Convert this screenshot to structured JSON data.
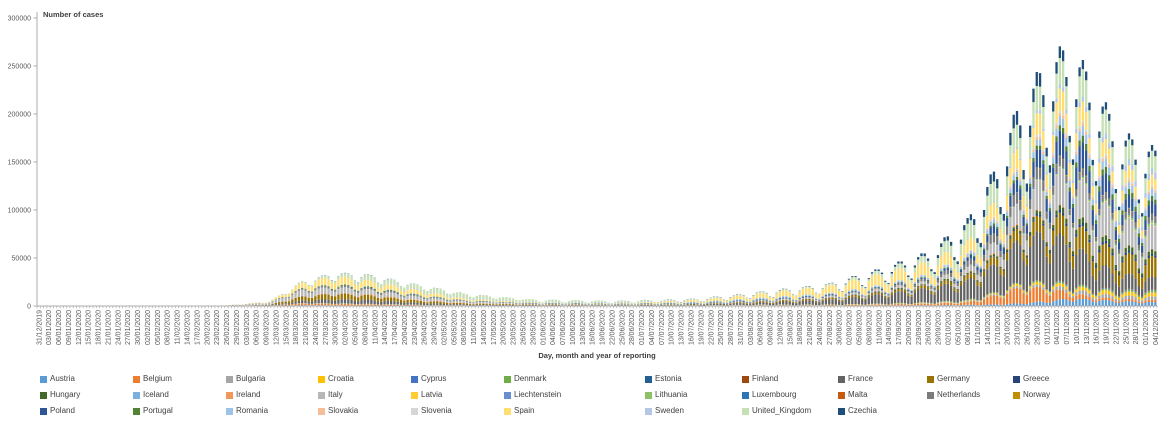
{
  "chart_data": {
    "type": "bar",
    "subtype": "stacked-daily",
    "y_axis": {
      "label": "Number of cases",
      "min": 0,
      "max": 300000,
      "tick_interval": 50000,
      "ticks": [
        0,
        50000,
        100000,
        150000,
        200000,
        250000,
        300000
      ]
    },
    "x_axis": {
      "label": "Day, month and year of reporting",
      "first_bar_date": "31/12/2019",
      "last_bar_date": "04/12/2020",
      "bar_period_days": 1,
      "n_bars": 340,
      "label_every_n_days": 3,
      "tick_labels": [
        "31/12/2019",
        "03/01/2020",
        "06/01/2020",
        "09/01/2020",
        "12/01/2020",
        "15/01/2020",
        "18/01/2020",
        "21/01/2020",
        "24/01/2020",
        "27/01/2020",
        "30/01/2020",
        "02/02/2020",
        "05/02/2020",
        "08/02/2020",
        "11/02/2020",
        "14/02/2020",
        "17/02/2020",
        "20/02/2020",
        "23/02/2020",
        "26/02/2020",
        "29/02/2020",
        "03/03/2020",
        "06/03/2020",
        "09/03/2020",
        "12/03/2020",
        "15/03/2020",
        "18/03/2020",
        "21/03/2020",
        "24/03/2020",
        "27/03/2020",
        "30/03/2020",
        "02/04/2020",
        "05/04/2020",
        "08/04/2020",
        "11/04/2020",
        "14/04/2020",
        "17/04/2020",
        "20/04/2020",
        "23/04/2020",
        "26/04/2020",
        "29/04/2020",
        "02/05/2020",
        "05/05/2020",
        "08/05/2020",
        "11/05/2020",
        "14/05/2020",
        "17/05/2020",
        "20/05/2020",
        "23/05/2020",
        "26/05/2020",
        "29/05/2020",
        "01/06/2020",
        "04/06/2020",
        "07/06/2020",
        "10/06/2020",
        "13/06/2020",
        "16/06/2020",
        "19/06/2020",
        "22/06/2020",
        "25/06/2020",
        "28/06/2020",
        "01/07/2020",
        "04/07/2020",
        "07/07/2020",
        "10/07/2020",
        "13/07/2020",
        "16/07/2020",
        "19/07/2020",
        "22/07/2020",
        "25/07/2020",
        "28/07/2020",
        "31/07/2020",
        "03/08/2020",
        "06/08/2020",
        "09/08/2020",
        "12/08/2020",
        "15/08/2020",
        "18/08/2020",
        "21/08/2020",
        "24/08/2020",
        "27/08/2020",
        "30/08/2020",
        "02/09/2020",
        "05/09/2020",
        "08/09/2020",
        "11/09/2020",
        "14/09/2020",
        "17/09/2020",
        "20/09/2020",
        "23/09/2020",
        "26/09/2020",
        "29/09/2020",
        "02/10/2020",
        "05/10/2020",
        "08/10/2020",
        "11/10/2020",
        "14/10/2020",
        "17/10/2020",
        "20/10/2020",
        "23/10/2020",
        "26/10/2020",
        "29/10/2020",
        "01/11/2020",
        "04/11/2020",
        "07/11/2020",
        "10/11/2020",
        "13/11/2020",
        "16/11/2020",
        "19/11/2020",
        "22/11/2020",
        "25/11/2020",
        "28/11/2020",
        "01/12/2020",
        "04/12/2020"
      ]
    },
    "legend": {
      "position": "bottom",
      "columns": 11,
      "rows": 3
    },
    "estimation": {
      "note": "Daily stacked values estimated from pixel heights; values given at keyframe dates, linearly interpolated per day, with a weekday reporting modulation producing the sawtooth envelope.",
      "keyframe_day_index": [
        0,
        55,
        70,
        80,
        90,
        100,
        115,
        130,
        150,
        175,
        200,
        220,
        240,
        255,
        270,
        282,
        290,
        298,
        306,
        313,
        320,
        328,
        339
      ],
      "keyframe_dates": [
        "31/12/2019",
        "24/02/2020",
        "10/03/2020",
        "20/03/2020",
        "30/03/2020",
        "09/04/2020",
        "24/04/2020",
        "09/05/2020",
        "29/05/2020",
        "23/06/2020",
        "18/07/2020",
        "07/08/2020",
        "27/08/2020",
        "11/09/2020",
        "26/09/2020",
        "08/10/2020",
        "16/10/2020",
        "24/10/2020",
        "01/11/2020",
        "08/11/2020",
        "15/11/2020",
        "23/11/2020",
        "04/12/2020"
      ],
      "weekly_modulation_mon_to_sun": [
        0.66,
        0.95,
        1.12,
        1.18,
        1.15,
        1.02,
        0.75
      ],
      "first_bar_weekday": "Tuesday",
      "modulation_damping_before_day": 150,
      "modulation_damping_factor": 0.55
    },
    "series": [
      {
        "name": "Austria",
        "color": "#5B9BD5",
        "values": [
          0,
          0,
          90,
          900,
          700,
          300,
          80,
          60,
          40,
          35,
          90,
          250,
          350,
          600,
          750,
          1100,
          1500,
          2500,
          4500,
          7000,
          6000,
          4500,
          3500
        ]
      },
      {
        "name": "Belgium",
        "color": "#ED7D31",
        "values": [
          0,
          0,
          180,
          1500,
          1400,
          1300,
          800,
          400,
          250,
          90,
          200,
          500,
          500,
          800,
          1500,
          2500,
          8000,
          15000,
          12000,
          6000,
          2500,
          2000,
          2000
        ]
      },
      {
        "name": "Bulgaria",
        "color": "#A5A5A5",
        "values": [
          0,
          0,
          10,
          50,
          60,
          70,
          60,
          40,
          20,
          60,
          240,
          150,
          120,
          150,
          300,
          700,
          1200,
          1800,
          2500,
          3500,
          3500,
          3000,
          3000
        ]
      },
      {
        "name": "Croatia",
        "color": "#FFC000",
        "values": [
          0,
          0,
          15,
          80,
          60,
          50,
          30,
          15,
          5,
          25,
          90,
          150,
          200,
          200,
          300,
          500,
          900,
          1800,
          2500,
          3000,
          3200,
          3500,
          3500
        ]
      },
      {
        "name": "Cyprus",
        "color": "#4472C4",
        "values": [
          0,
          0,
          5,
          30,
          30,
          25,
          15,
          10,
          5,
          5,
          15,
          20,
          20,
          30,
          80,
          120,
          150,
          180,
          200,
          250,
          250,
          250,
          300
        ]
      },
      {
        "name": "Denmark",
        "color": "#70AD47",
        "values": [
          0,
          0,
          100,
          150,
          250,
          250,
          180,
          130,
          60,
          40,
          80,
          120,
          100,
          300,
          450,
          500,
          600,
          800,
          1100,
          1200,
          1100,
          1300,
          1600
        ]
      },
      {
        "name": "Estonia",
        "color": "#255E91",
        "values": [
          0,
          0,
          15,
          60,
          60,
          40,
          25,
          10,
          5,
          5,
          10,
          20,
          20,
          30,
          60,
          80,
          120,
          160,
          200,
          250,
          300,
          350,
          500
        ]
      },
      {
        "name": "Finland",
        "color": "#9E480E",
        "values": [
          0,
          0,
          30,
          120,
          130,
          100,
          80,
          50,
          30,
          15,
          15,
          25,
          30,
          80,
          120,
          150,
          200,
          220,
          250,
          300,
          300,
          350,
          400
        ]
      },
      {
        "name": "France",
        "color": "#636363",
        "values": [
          0,
          2,
          500,
          2500,
          4000,
          4000,
          2000,
          800,
          500,
          400,
          700,
          2000,
          4500,
          8500,
          13000,
          18000,
          25000,
          40000,
          45000,
          40000,
          25000,
          15000,
          11000
        ]
      },
      {
        "name": "Germany",
        "color": "#997300",
        "values": [
          0,
          2,
          350,
          4000,
          5500,
          4500,
          2200,
          1000,
          500,
          400,
          400,
          1000,
          1400,
          1700,
          2300,
          4000,
          7000,
          11000,
          15000,
          20000,
          20000,
          18000,
          18000
        ]
      },
      {
        "name": "Greece",
        "color": "#264478",
        "values": [
          0,
          0,
          20,
          90,
          90,
          60,
          30,
          15,
          10,
          15,
          30,
          150,
          250,
          300,
          350,
          400,
          500,
          900,
          2000,
          2800,
          2800,
          2300,
          1800
        ]
      },
      {
        "name": "Hungary",
        "color": "#43682B",
        "values": [
          0,
          0,
          10,
          50,
          80,
          90,
          70,
          50,
          30,
          15,
          15,
          30,
          60,
          500,
          900,
          1200,
          1800,
          2500,
          3500,
          5000,
          5000,
          4500,
          4000
        ]
      },
      {
        "name": "Iceland",
        "color": "#7CAFDD",
        "values": [
          0,
          0,
          25,
          80,
          60,
          20,
          5,
          2,
          1,
          2,
          5,
          15,
          60,
          60,
          30,
          40,
          50,
          40,
          30,
          20,
          15,
          15,
          15
        ]
      },
      {
        "name": "Ireland",
        "color": "#F1975A",
        "values": [
          0,
          0,
          30,
          300,
          450,
          700,
          500,
          300,
          100,
          20,
          25,
          60,
          120,
          250,
          400,
          500,
          1000,
          1200,
          700,
          450,
          400,
          300,
          270
        ]
      },
      {
        "name": "Italy",
        "color": "#B7B7B7",
        "values": [
          0,
          150,
          1800,
          5500,
          5500,
          4500,
          3000,
          1400,
          600,
          250,
          230,
          450,
          1100,
          1600,
          1900,
          4500,
          9000,
          19000,
          30000,
          35000,
          33000,
          25000,
          22000
        ]
      },
      {
        "name": "Latvia",
        "color": "#FFCD33",
        "values": [
          0,
          0,
          5,
          25,
          25,
          25,
          15,
          10,
          5,
          3,
          5,
          5,
          10,
          20,
          50,
          90,
          130,
          180,
          250,
          300,
          400,
          450,
          500
        ]
      },
      {
        "name": "Liechtenstein",
        "color": "#698ED0",
        "values": [
          0,
          0,
          2,
          8,
          5,
          2,
          1,
          0,
          0,
          0,
          0,
          1,
          1,
          2,
          5,
          8,
          10,
          15,
          20,
          25,
          25,
          20,
          20
        ]
      },
      {
        "name": "Lithuania",
        "color": "#8CC168",
        "values": [
          0,
          0,
          5,
          40,
          50,
          40,
          25,
          15,
          8,
          5,
          10,
          15,
          25,
          40,
          100,
          150,
          250,
          400,
          700,
          1200,
          1600,
          2000,
          2500
        ]
      },
      {
        "name": "Luxembourg",
        "color": "#2E75B6",
        "values": [
          0,
          0,
          25,
          150,
          120,
          80,
          30,
          10,
          5,
          10,
          100,
          100,
          50,
          100,
          150,
          200,
          350,
          550,
          700,
          700,
          600,
          600,
          650
        ]
      },
      {
        "name": "Malta",
        "color": "#C55A11",
        "values": [
          0,
          0,
          5,
          20,
          15,
          10,
          5,
          3,
          1,
          2,
          5,
          30,
          50,
          50,
          50,
          60,
          90,
          120,
          150,
          180,
          180,
          150,
          130
        ]
      },
      {
        "name": "Netherlands",
        "color": "#7B7B7B",
        "values": [
          0,
          0,
          200,
          900,
          1100,
          1200,
          800,
          300,
          150,
          80,
          120,
          400,
          500,
          900,
          2200,
          4500,
          7500,
          9500,
          9000,
          6500,
          5000,
          4800,
          4800
        ]
      },
      {
        "name": "Norway",
        "color": "#BF8F00",
        "values": [
          0,
          0,
          120,
          200,
          250,
          150,
          70,
          30,
          15,
          10,
          15,
          40,
          70,
          100,
          150,
          200,
          280,
          350,
          450,
          550,
          550,
          450,
          400
        ]
      },
      {
        "name": "Poland",
        "color": "#2F5597",
        "values": [
          0,
          0,
          20,
          120,
          250,
          350,
          350,
          350,
          350,
          300,
          350,
          600,
          700,
          550,
          1000,
          3000,
          7500,
          12000,
          18000,
          25000,
          22000,
          12000,
          11000
        ]
      },
      {
        "name": "Portugal",
        "color": "#548235",
        "values": [
          0,
          0,
          30,
          500,
          800,
          900,
          700,
          300,
          250,
          300,
          300,
          230,
          200,
          400,
          700,
          1000,
          1800,
          2800,
          4000,
          5500,
          6000,
          5000,
          4500
        ]
      },
      {
        "name": "Romania",
        "color": "#9DC3E6",
        "values": [
          0,
          0,
          15,
          150,
          250,
          300,
          300,
          200,
          150,
          200,
          700,
          1200,
          1100,
          1300,
          1800,
          2500,
          3500,
          4500,
          6000,
          9000,
          8000,
          6500,
          6000
        ]
      },
      {
        "name": "Slovakia",
        "color": "#F6BE98",
        "values": [
          0,
          0,
          10,
          40,
          50,
          60,
          30,
          20,
          10,
          10,
          20,
          40,
          60,
          100,
          250,
          700,
          1500,
          2000,
          2500,
          3000,
          2500,
          1800,
          1800
        ]
      },
      {
        "name": "Slovenia",
        "color": "#D6D6D6",
        "values": [
          0,
          0,
          15,
          60,
          50,
          40,
          20,
          10,
          3,
          5,
          15,
          25,
          30,
          80,
          200,
          350,
          800,
          1500,
          2500,
          2000,
          1700,
          1600,
          1500
        ]
      },
      {
        "name": "Spain",
        "color": "#FFDD71",
        "values": [
          0,
          0,
          600,
          5000,
          7500,
          6000,
          4000,
          1500,
          500,
          400,
          1800,
          4000,
          7000,
          10000,
          11000,
          11000,
          13000,
          18000,
          19000,
          20000,
          15000,
          12000,
          9000
        ]
      },
      {
        "name": "Sweden",
        "color": "#B4C7E7",
        "values": [
          0,
          0,
          100,
          150,
          300,
          500,
          600,
          600,
          600,
          900,
          300,
          250,
          200,
          250,
          450,
          600,
          1000,
          1500,
          3000,
          4500,
          4500,
          5500,
          6000
        ]
      },
      {
        "name": "United_Kingdom",
        "color": "#C5E0B4",
        "values": [
          0,
          0,
          80,
          900,
          2500,
          4500,
          4500,
          4000,
          2000,
          1000,
          650,
          900,
          1100,
          2800,
          5500,
          14000,
          18000,
          21000,
          22000,
          24000,
          24000,
          18000,
          15000
        ]
      },
      {
        "name": "Czechia",
        "color": "#1F4E79",
        "values": [
          0,
          0,
          20,
          150,
          250,
          200,
          120,
          60,
          40,
          50,
          120,
          250,
          300,
          1300,
          2500,
          5000,
          9000,
          13000,
          12000,
          9000,
          7500,
          5500,
          5000
        ]
      }
    ]
  }
}
